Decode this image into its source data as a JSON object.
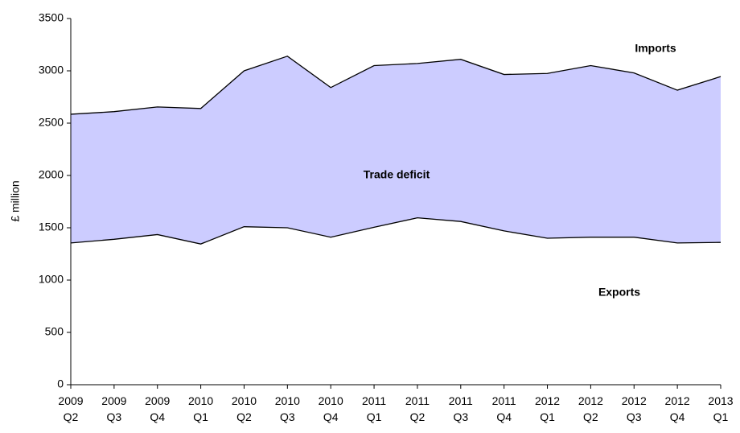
{
  "chart_data": {
    "type": "area-between",
    "y_label": "£ million",
    "categories": [
      "2009 Q2",
      "2009 Q3",
      "2009 Q4",
      "2010 Q1",
      "2010 Q2",
      "2010 Q3",
      "2010 Q4",
      "2011 Q1",
      "2011 Q2",
      "2011 Q3",
      "2011 Q4",
      "2012 Q1",
      "2012 Q2",
      "2012 Q3",
      "2012 Q4",
      "2013 Q1"
    ],
    "series": [
      {
        "name": "Exports",
        "color": "#000000",
        "values": [
          1355,
          1390,
          1435,
          1345,
          1510,
          1500,
          1410,
          1505,
          1595,
          1560,
          1470,
          1400,
          1410,
          1410,
          1355,
          1360
        ]
      },
      {
        "name": "Imports",
        "color": "#000000",
        "values": [
          2585,
          2610,
          2655,
          2640,
          3000,
          3140,
          2840,
          3050,
          3070,
          3110,
          2965,
          2975,
          3050,
          2980,
          2815,
          2945
        ]
      }
    ],
    "fill_color": "#ccccff",
    "annotations": [
      "Imports",
      "Trade deficit",
      "Exports"
    ],
    "ylim": [
      0,
      3500
    ],
    "yticks": [
      0,
      500,
      1000,
      1500,
      2000,
      2500,
      3000,
      3500
    ],
    "grid": false
  }
}
